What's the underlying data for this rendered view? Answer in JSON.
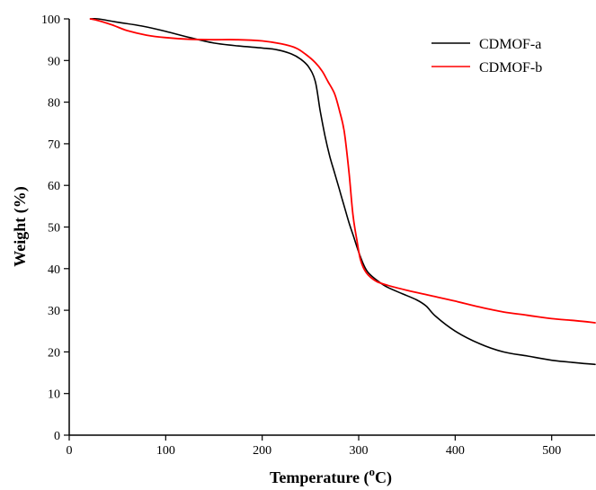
{
  "chart_data": {
    "type": "line",
    "xlabel": "Temperature (",
    "xlabel_super": "o",
    "xlabel_unit": "C)",
    "ylabel": "Weight (%)",
    "xlim": [
      0,
      545
    ],
    "ylim": [
      0,
      100
    ],
    "x_ticks": [
      0,
      100,
      200,
      300,
      400,
      500
    ],
    "y_ticks": [
      0,
      10,
      20,
      30,
      40,
      50,
      60,
      70,
      80,
      90,
      100
    ],
    "legend_position": "top-right",
    "grid": false,
    "series": [
      {
        "name": "CDMOF-a",
        "color": "#000000",
        "points": [
          [
            22,
            100
          ],
          [
            30,
            100
          ],
          [
            50,
            99.2
          ],
          [
            75,
            98.3
          ],
          [
            100,
            97
          ],
          [
            125,
            95.5
          ],
          [
            150,
            94.2
          ],
          [
            175,
            93.5
          ],
          [
            200,
            93
          ],
          [
            215,
            92.6
          ],
          [
            230,
            91.6
          ],
          [
            240,
            90.3
          ],
          [
            248,
            88.5
          ],
          [
            255,
            85
          ],
          [
            260,
            78
          ],
          [
            265,
            72
          ],
          [
            270,
            67
          ],
          [
            275,
            63
          ],
          [
            280,
            59
          ],
          [
            285,
            55
          ],
          [
            290,
            51
          ],
          [
            295,
            47.5
          ],
          [
            300,
            44
          ],
          [
            305,
            41
          ],
          [
            310,
            39
          ],
          [
            320,
            37
          ],
          [
            330,
            35.5
          ],
          [
            345,
            34
          ],
          [
            360,
            32.5
          ],
          [
            370,
            31
          ],
          [
            380,
            28.5
          ],
          [
            400,
            25
          ],
          [
            425,
            22
          ],
          [
            450,
            20
          ],
          [
            475,
            19
          ],
          [
            500,
            18
          ],
          [
            525,
            17.4
          ],
          [
            545,
            17
          ]
        ]
      },
      {
        "name": "CDMOF-b",
        "color": "#ff0000",
        "points": [
          [
            22,
            100
          ],
          [
            30,
            99.6
          ],
          [
            45,
            98.5
          ],
          [
            60,
            97.2
          ],
          [
            80,
            96.1
          ],
          [
            100,
            95.5
          ],
          [
            125,
            95.1
          ],
          [
            150,
            95
          ],
          [
            175,
            95
          ],
          [
            200,
            94.7
          ],
          [
            220,
            94
          ],
          [
            235,
            93
          ],
          [
            245,
            91.5
          ],
          [
            255,
            89.5
          ],
          [
            262,
            87.5
          ],
          [
            268,
            85
          ],
          [
            275,
            82
          ],
          [
            280,
            78
          ],
          [
            285,
            73
          ],
          [
            290,
            63
          ],
          [
            294,
            53
          ],
          [
            298,
            47
          ],
          [
            302,
            42
          ],
          [
            308,
            39
          ],
          [
            318,
            37
          ],
          [
            330,
            36
          ],
          [
            350,
            34.8
          ],
          [
            375,
            33.5
          ],
          [
            400,
            32.2
          ],
          [
            425,
            30.8
          ],
          [
            450,
            29.6
          ],
          [
            475,
            28.8
          ],
          [
            500,
            28
          ],
          [
            525,
            27.5
          ],
          [
            545,
            27
          ]
        ]
      }
    ]
  }
}
